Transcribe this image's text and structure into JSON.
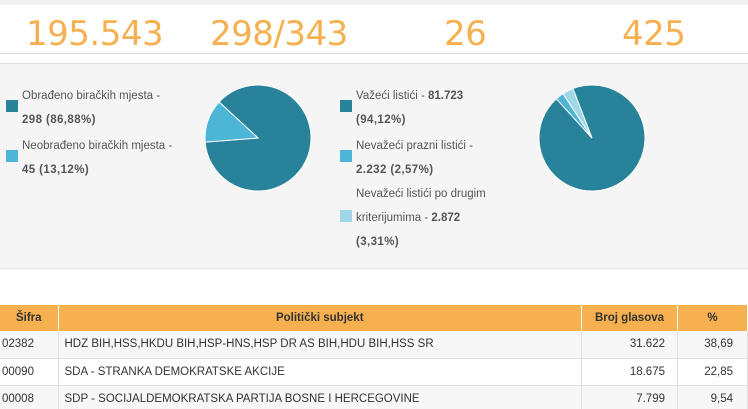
{
  "stats": {
    "values": [
      "195.543",
      "298/343",
      "26",
      "425"
    ]
  },
  "polling_stations": {
    "processed_label": "Obrađeno biračkih mjesta -",
    "processed_value": "298 (86,88%)",
    "unprocessed_label": "Neobrađeno biračkih mjesta -",
    "unprocessed_value": "45 (13,12%)",
    "slices": [
      {
        "name": "processed",
        "value": 86.88,
        "color": "#27829a"
      },
      {
        "name": "unprocessed",
        "value": 13.12,
        "color": "#4db5d6"
      }
    ]
  },
  "ballots": {
    "valid_label": "Važeći listići - ",
    "valid_value": "81.723",
    "valid_pct": "(94,12%)",
    "invalid_blank_label": "Nevažeći prazni listići -",
    "invalid_blank_value": "2.232 (2,57%)",
    "invalid_other_label1": "Nevažeći listići po drugim",
    "invalid_other_label2": "kriterijumima - ",
    "invalid_other_value": "2.872",
    "invalid_other_pct": "(3,31%)",
    "slices": [
      {
        "name": "valid",
        "value": 94.12,
        "color": "#27829a"
      },
      {
        "name": "invalid_blank",
        "value": 2.57,
        "color": "#4db5d6"
      },
      {
        "name": "invalid_other",
        "value": 3.31,
        "color": "#9dd7e8"
      }
    ]
  },
  "table": {
    "headers": {
      "code": "Šifra",
      "party": "Politički subjekt",
      "votes": "Broj glasova",
      "pct": "%"
    },
    "rows": [
      {
        "code": "02382",
        "party": "HDZ BIH,HSS,HKDU BIH,HSP-HNS,HSP DR AS BIH,HDU BIH,HSS SR",
        "votes": "31.622",
        "pct": "38,69"
      },
      {
        "code": "00090",
        "party": "SDA - STRANKA DEMOKRATSKE AKCIJE",
        "votes": "18.675",
        "pct": "22,85"
      },
      {
        "code": "00008",
        "party": "SDP - SOCIJALDEMOKRATSKA PARTIJA BOSNE I HERCEGOVINE",
        "votes": "7.799",
        "pct": "9,54"
      }
    ]
  }
}
